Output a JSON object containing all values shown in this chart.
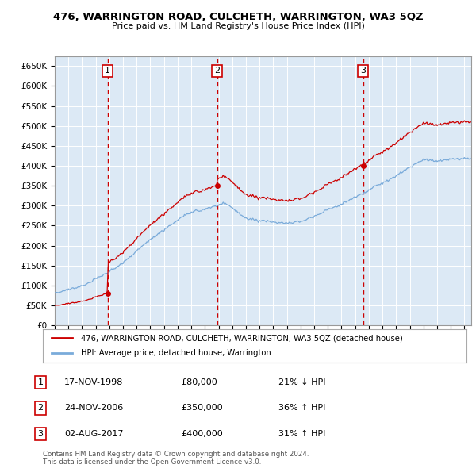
{
  "title": "476, WARRINGTON ROAD, CULCHETH, WARRINGTON, WA3 5QZ",
  "subtitle": "Price paid vs. HM Land Registry's House Price Index (HPI)",
  "sale_year_nums": [
    1998.879,
    2006.899,
    2017.583
  ],
  "sale_prices": [
    80000,
    350000,
    400000
  ],
  "sale_labels": [
    "1",
    "2",
    "3"
  ],
  "legend_line1": "476, WARRINGTON ROAD, CULCHETH, WARRINGTON, WA3 5QZ (detached house)",
  "legend_line2": "HPI: Average price, detached house, Warrington",
  "footer": "Contains HM Land Registry data © Crown copyright and database right 2024.\nThis data is licensed under the Open Government Licence v3.0.",
  "hpi_color": "#7aabda",
  "sale_color": "#cc0000",
  "background_color": "#dce9f5",
  "ylim": [
    0,
    675000
  ],
  "yticks": [
    0,
    50000,
    100000,
    150000,
    200000,
    250000,
    300000,
    350000,
    400000,
    450000,
    500000,
    550000,
    600000,
    650000
  ],
  "row_info": [
    [
      "1",
      "17-NOV-1998",
      "£80,000",
      "21% ↓ HPI"
    ],
    [
      "2",
      "24-NOV-2006",
      "£350,000",
      "36% ↑ HPI"
    ],
    [
      "3",
      "02-AUG-2017",
      "£400,000",
      "31% ↑ HPI"
    ]
  ]
}
